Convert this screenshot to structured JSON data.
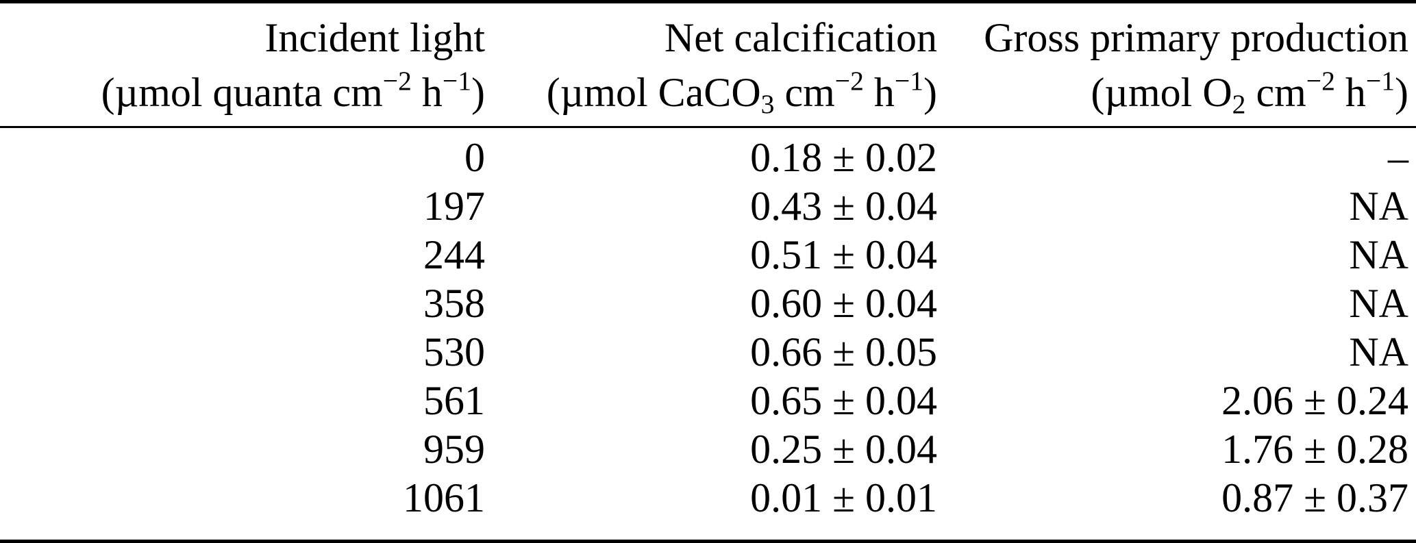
{
  "page": {
    "background": "#ffffff",
    "text_color": "#000000"
  },
  "table": {
    "columns": [
      {
        "title": "Incident light",
        "unit": {
          "pre": "(µmol quanta cm",
          "sub": "",
          "mid1": "",
          "sup1": "−2",
          "mid2": " h",
          "sup2": "−1",
          "post": ")"
        }
      },
      {
        "title": "Net calcification",
        "unit": {
          "pre": "(µmol CaCO",
          "sub": "3",
          "mid1": " cm",
          "sup1": "−2",
          "mid2": " h",
          "sup2": "−1",
          "post": ")"
        }
      },
      {
        "title": "Gross primary production",
        "unit": {
          "pre": "(µmol O",
          "sub": "2",
          "mid1": " cm",
          "sup1": "−2",
          "mid2": " h",
          "sup2": "−1",
          "post": ")"
        }
      }
    ],
    "rows": [
      [
        "0",
        "0.18 ± 0.02",
        "–"
      ],
      [
        "197",
        "0.43 ± 0.04",
        "NA"
      ],
      [
        "244",
        "0.51 ± 0.04",
        "NA"
      ],
      [
        "358",
        "0.60 ± 0.04",
        "NA"
      ],
      [
        "530",
        "0.66 ± 0.05",
        "NA"
      ],
      [
        "561",
        "0.65 ± 0.04",
        "2.06 ± 0.24"
      ],
      [
        "959",
        "0.25 ± 0.04",
        "1.76 ± 0.28"
      ],
      [
        "1061",
        "0.01 ± 0.01",
        "0.87 ± 0.37"
      ]
    ]
  }
}
